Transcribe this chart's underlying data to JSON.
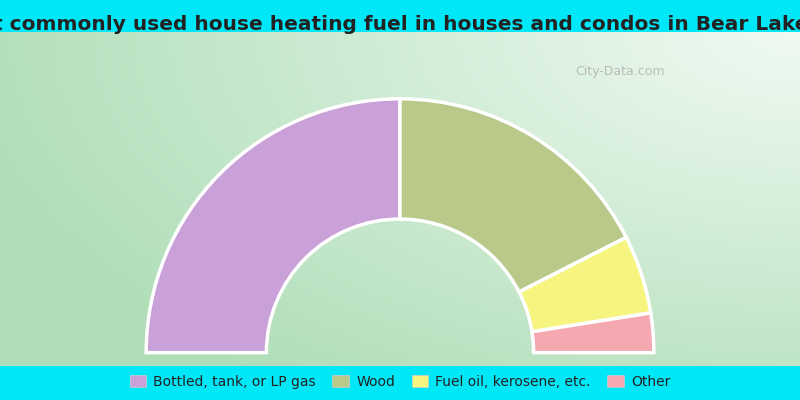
{
  "title": "Most commonly used house heating fuel in houses and condos in Bear Lake, WI",
  "segments": [
    {
      "label": "Bottled, tank, or LP gas",
      "value": 50.0,
      "color": "#c9a0d8"
    },
    {
      "label": "Wood",
      "value": 35.0,
      "color": "#b8c98a"
    },
    {
      "label": "Fuel oil, kerosene, etc.",
      "value": 10.0,
      "color": "#f5f580"
    },
    {
      "label": "Other",
      "value": 5.0,
      "color": "#f5a8b0"
    }
  ],
  "bg_outer_color": "#b0ddb8",
  "bg_inner_color": "#e8f8f0",
  "bg_right_color": "#f0f8f4",
  "cyan_color": "#00e8f8",
  "title_color": "#222222",
  "title_fontsize": 14.5,
  "legend_fontsize": 10,
  "watermark": "City-Data.com"
}
